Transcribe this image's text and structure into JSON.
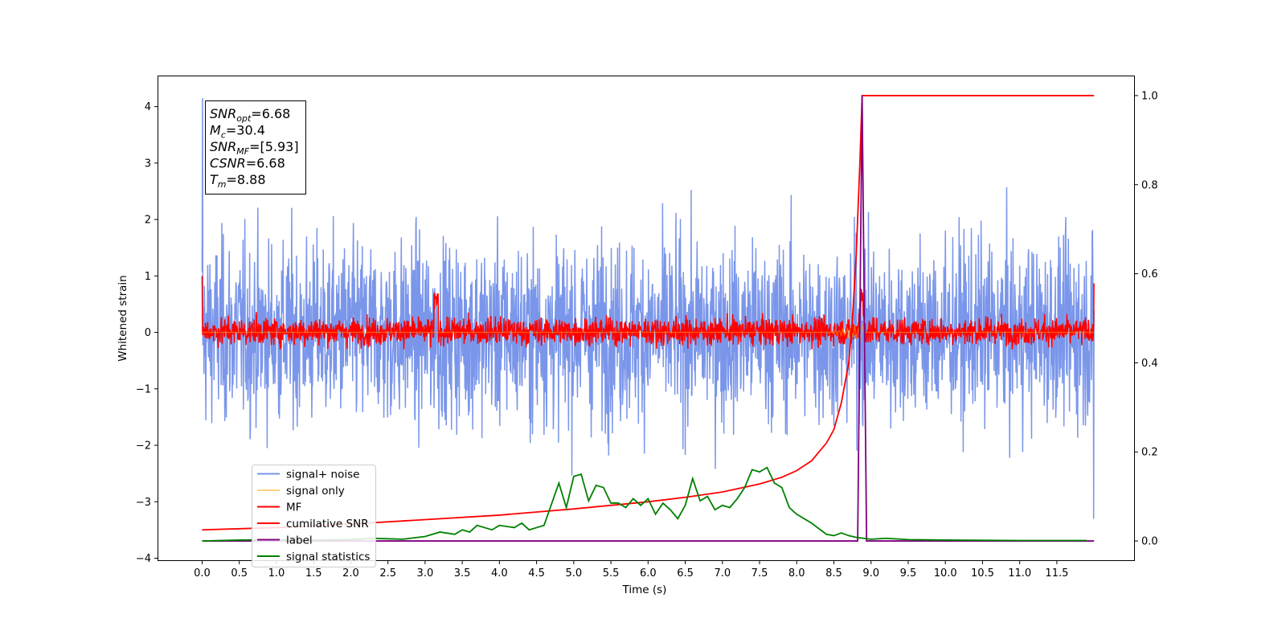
{
  "chart_data": {
    "type": "line",
    "xlabel": "Time (s)",
    "ylabel": "Whitened strain",
    "xlim": [
      -0.6,
      12.55
    ],
    "ylim_left": [
      -4.05,
      4.55
    ],
    "ylim_right": [
      -0.045,
      1.045
    ],
    "x_ticks": [
      0.0,
      0.5,
      1.0,
      1.5,
      2.0,
      2.5,
      3.0,
      3.5,
      4.0,
      4.5,
      5.0,
      5.5,
      6.0,
      6.5,
      7.0,
      7.5,
      8.0,
      8.5,
      9.0,
      9.5,
      10.0,
      10.5,
      11.0,
      11.5
    ],
    "x_tick_labels": [
      "0.0",
      "0.5",
      "1.0",
      "1.5",
      "2.0",
      "2.5",
      "3.0",
      "3.5",
      "4.0",
      "4.5",
      "5.0",
      "5.5",
      "6.0",
      "6.5",
      "7.0",
      "7.5",
      "8.0",
      "8.5",
      "9.0",
      "9.5",
      "10.0",
      "10.5",
      "11.0",
      "11.5"
    ],
    "y_left_ticks": [
      -4,
      -3,
      -2,
      -1,
      0,
      1,
      2,
      3,
      4
    ],
    "y_left_tick_labels": [
      "−4",
      "−3",
      "−2",
      "−1",
      "0",
      "1",
      "2",
      "3",
      "4"
    ],
    "y_right_ticks": [
      0.0,
      0.2,
      0.4,
      0.6,
      0.8,
      1.0
    ],
    "y_right_tick_labels": [
      "0.0",
      "0.2",
      "0.4",
      "0.6",
      "0.8",
      "1.0"
    ],
    "grid": false,
    "legend_position": "lower-left",
    "info_box": {
      "lines": [
        {
          "sym": "SNR",
          "sub": "opt",
          "value": "=6.68"
        },
        {
          "sym": "M",
          "sub": "c",
          "value": "=30.4"
        },
        {
          "sym": "SNR",
          "sub": "MF",
          "value": "=[5.93]"
        },
        {
          "sym": "CSNR",
          "sub": "",
          "value": "=6.68"
        },
        {
          "sym": "T",
          "sub": "m",
          "value": "=8.88"
        }
      ]
    },
    "series": [
      {
        "name": "signal+ noise",
        "color": "#4169e1",
        "axis": "left",
        "x_range": [
          0.0,
          12.0
        ],
        "approx_range": [
          -3.4,
          4.2
        ]
      },
      {
        "name": "signal only",
        "color": "#ffa500",
        "axis": "left",
        "x_range": [
          0.0,
          12.0
        ],
        "approx_range": [
          -0.2,
          0.2
        ]
      },
      {
        "name": "MF",
        "color": "#ff0000",
        "axis": "left",
        "x_range": [
          0.0,
          12.0
        ],
        "approx_range": [
          -0.3,
          1.0
        ]
      },
      {
        "name": "cumilative SNR",
        "color": "#ff0000",
        "axis": "right",
        "x": [
          0.0,
          1.0,
          2.0,
          3.0,
          4.0,
          5.0,
          6.0,
          6.5,
          7.0,
          7.5,
          7.8,
          8.0,
          8.2,
          8.4,
          8.5,
          8.6,
          8.7,
          8.75,
          8.8,
          8.85,
          8.88,
          9.0,
          10.0,
          11.0,
          12.0
        ],
        "values": [
          0.025,
          0.03,
          0.038,
          0.048,
          0.058,
          0.072,
          0.088,
          0.098,
          0.11,
          0.128,
          0.143,
          0.158,
          0.18,
          0.22,
          0.25,
          0.31,
          0.4,
          0.5,
          0.64,
          0.85,
          1.0,
          1.0,
          1.0,
          1.0,
          1.0
        ]
      },
      {
        "name": "label",
        "color": "#800080",
        "axis": "right",
        "x": [
          0.0,
          8.82,
          8.88,
          8.94,
          12.0
        ],
        "values": [
          0.0,
          0.0,
          1.0,
          0.0,
          0.0
        ]
      },
      {
        "name": "signal statistics",
        "color": "#008000",
        "axis": "right",
        "x": [
          0.0,
          0.5,
          1.0,
          1.5,
          2.0,
          2.3,
          2.5,
          2.7,
          3.0,
          3.2,
          3.4,
          3.5,
          3.6,
          3.7,
          3.8,
          3.9,
          4.0,
          4.2,
          4.3,
          4.4,
          4.5,
          4.6,
          4.8,
          4.9,
          5.0,
          5.1,
          5.2,
          5.3,
          5.4,
          5.5,
          5.6,
          5.7,
          5.8,
          5.9,
          6.0,
          6.1,
          6.2,
          6.3,
          6.4,
          6.5,
          6.6,
          6.7,
          6.8,
          6.9,
          7.0,
          7.1,
          7.2,
          7.3,
          7.4,
          7.5,
          7.6,
          7.7,
          7.8,
          7.9,
          8.0,
          8.2,
          8.4,
          8.5,
          8.6,
          8.7,
          8.8,
          9.0,
          9.2,
          9.5,
          10.0,
          11.0,
          11.9
        ],
        "values": [
          0.0,
          0.002,
          0.003,
          0.002,
          0.003,
          0.006,
          0.005,
          0.004,
          0.01,
          0.02,
          0.015,
          0.025,
          0.02,
          0.035,
          0.03,
          0.025,
          0.035,
          0.03,
          0.04,
          0.025,
          0.03,
          0.035,
          0.13,
          0.075,
          0.145,
          0.15,
          0.09,
          0.125,
          0.12,
          0.085,
          0.085,
          0.075,
          0.095,
          0.08,
          0.095,
          0.06,
          0.085,
          0.07,
          0.05,
          0.08,
          0.14,
          0.09,
          0.1,
          0.07,
          0.08,
          0.075,
          0.095,
          0.12,
          0.16,
          0.155,
          0.165,
          0.13,
          0.12,
          0.075,
          0.06,
          0.04,
          0.015,
          0.012,
          0.018,
          0.012,
          0.008,
          0.004,
          0.006,
          0.003,
          0.002,
          0.001,
          0.001
        ]
      }
    ]
  }
}
